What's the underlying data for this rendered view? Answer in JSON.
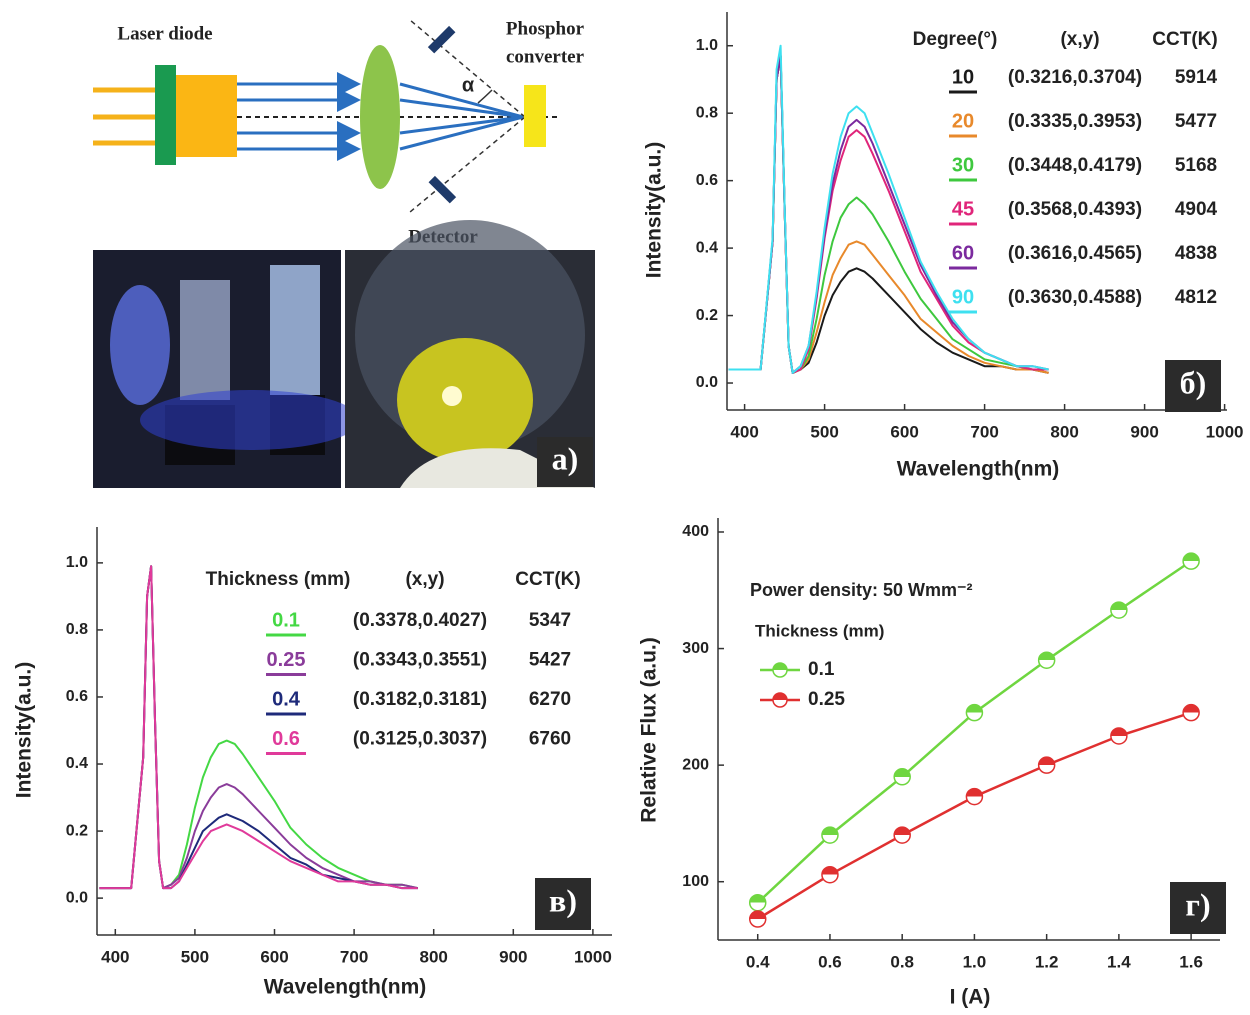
{
  "diagram": {
    "labels": [
      "Laser diode",
      "Phosphor",
      "converter",
      "Detector",
      "α"
    ],
    "panel_label": "а)"
  },
  "chart_data": [
    {
      "type": "line",
      "panel_label": "б)",
      "x_label": "Wavelength(nm)",
      "y_label": "Intensity(a.u.)",
      "legend_header": [
        "Degree(°)",
        "(x,y)",
        "CCT(K)"
      ],
      "x": [
        380,
        400,
        420,
        435,
        440,
        445,
        450,
        455,
        460,
        470,
        480,
        490,
        500,
        510,
        520,
        530,
        540,
        550,
        560,
        580,
        600,
        620,
        640,
        660,
        680,
        700,
        720,
        740,
        760,
        780
      ],
      "series": [
        {
          "name": "10",
          "color": "#1a1a1a",
          "xy": "(0.3216,0.3704)",
          "cct": 5914,
          "values": [
            0.04,
            0.04,
            0.04,
            0.42,
            0.9,
            0.97,
            0.52,
            0.11,
            0.03,
            0.04,
            0.06,
            0.12,
            0.2,
            0.26,
            0.3,
            0.33,
            0.34,
            0.33,
            0.31,
            0.26,
            0.21,
            0.16,
            0.12,
            0.09,
            0.07,
            0.05,
            0.05,
            0.04,
            0.04,
            0.03
          ]
        },
        {
          "name": "20",
          "color": "#e8892b",
          "xy": "(0.3335,0.3953)",
          "cct": 5477,
          "values": [
            0.04,
            0.04,
            0.04,
            0.42,
            0.9,
            0.97,
            0.52,
            0.11,
            0.03,
            0.04,
            0.07,
            0.15,
            0.24,
            0.32,
            0.37,
            0.41,
            0.42,
            0.41,
            0.38,
            0.32,
            0.26,
            0.19,
            0.15,
            0.11,
            0.08,
            0.06,
            0.05,
            0.04,
            0.04,
            0.03
          ]
        },
        {
          "name": "30",
          "color": "#3ec83e",
          "xy": "(0.3448,0.4179)",
          "cct": 5168,
          "values": [
            0.04,
            0.04,
            0.04,
            0.42,
            0.9,
            0.97,
            0.52,
            0.11,
            0.03,
            0.04,
            0.08,
            0.19,
            0.32,
            0.42,
            0.49,
            0.53,
            0.55,
            0.53,
            0.5,
            0.42,
            0.33,
            0.25,
            0.19,
            0.13,
            0.1,
            0.07,
            0.06,
            0.05,
            0.04,
            0.04
          ]
        },
        {
          "name": "45",
          "color": "#e0257a",
          "xy": "(0.3568,0.4393)",
          "cct": 4904,
          "values": [
            0.04,
            0.04,
            0.04,
            0.42,
            0.9,
            0.97,
            0.52,
            0.11,
            0.03,
            0.04,
            0.1,
            0.25,
            0.43,
            0.57,
            0.66,
            0.73,
            0.75,
            0.73,
            0.68,
            0.57,
            0.45,
            0.33,
            0.25,
            0.17,
            0.12,
            0.09,
            0.07,
            0.05,
            0.04,
            0.04
          ]
        },
        {
          "name": "60",
          "color": "#7b2a9e",
          "xy": "(0.3616,0.4565)",
          "cct": 4838,
          "values": [
            0.04,
            0.04,
            0.04,
            0.42,
            0.9,
            0.97,
            0.52,
            0.11,
            0.03,
            0.05,
            0.11,
            0.26,
            0.44,
            0.59,
            0.69,
            0.76,
            0.78,
            0.76,
            0.71,
            0.59,
            0.47,
            0.35,
            0.26,
            0.18,
            0.13,
            0.09,
            0.07,
            0.05,
            0.05,
            0.04
          ]
        },
        {
          "name": "90",
          "color": "#3ee0f0",
          "xy": "(0.3630,0.4588)",
          "cct": 4812,
          "values": [
            0.04,
            0.04,
            0.04,
            0.43,
            0.93,
            1.0,
            0.53,
            0.11,
            0.03,
            0.05,
            0.11,
            0.27,
            0.46,
            0.62,
            0.73,
            0.8,
            0.82,
            0.8,
            0.74,
            0.62,
            0.49,
            0.36,
            0.27,
            0.19,
            0.13,
            0.09,
            0.07,
            0.05,
            0.05,
            0.04
          ]
        }
      ],
      "xlim": [
        378,
        1003
      ],
      "ylim": [
        -0.08,
        1.1
      ],
      "xticks": [
        400,
        500,
        600,
        700,
        800,
        900,
        1000
      ],
      "yticks": [
        {
          "value": 0,
          "label": "0.0"
        },
        0.2,
        0.4,
        0.6,
        0.8,
        {
          "value": 1,
          "label": "1.0"
        }
      ]
    },
    {
      "type": "line",
      "panel_label": "в)",
      "x_label": "Wavelength(nm)",
      "y_label": "Intensity(a.u.)",
      "legend_header": [
        "Thickness (mm)",
        "(x,y)",
        "CCT(K)"
      ],
      "x": [
        380,
        400,
        420,
        435,
        440,
        445,
        450,
        455,
        460,
        470,
        480,
        490,
        500,
        510,
        520,
        530,
        540,
        550,
        560,
        580,
        600,
        620,
        640,
        660,
        680,
        700,
        720,
        740,
        760,
        780
      ],
      "series": [
        {
          "name": "0.1",
          "color": "#44d844",
          "xy": "(0.3378,0.4027)",
          "cct": 5347,
          "values": [
            0.03,
            0.03,
            0.03,
            0.42,
            0.9,
            0.99,
            0.52,
            0.11,
            0.03,
            0.04,
            0.07,
            0.16,
            0.27,
            0.36,
            0.42,
            0.46,
            0.47,
            0.46,
            0.43,
            0.36,
            0.29,
            0.21,
            0.16,
            0.12,
            0.09,
            0.07,
            0.05,
            0.04,
            0.04,
            0.03
          ]
        },
        {
          "name": "0.25",
          "color": "#8a3c9a",
          "xy": "(0.3343,0.3551)",
          "cct": 5427,
          "values": [
            0.03,
            0.03,
            0.03,
            0.42,
            0.9,
            0.99,
            0.52,
            0.11,
            0.03,
            0.04,
            0.06,
            0.12,
            0.2,
            0.26,
            0.3,
            0.33,
            0.34,
            0.33,
            0.31,
            0.26,
            0.21,
            0.16,
            0.12,
            0.09,
            0.07,
            0.05,
            0.05,
            0.04,
            0.04,
            0.03
          ]
        },
        {
          "name": "0.4",
          "color": "#1e2a7a",
          "xy": "(0.3182,0.3181)",
          "cct": 6270,
          "values": [
            0.03,
            0.03,
            0.03,
            0.42,
            0.9,
            0.99,
            0.52,
            0.11,
            0.03,
            0.03,
            0.05,
            0.1,
            0.15,
            0.2,
            0.22,
            0.24,
            0.25,
            0.24,
            0.23,
            0.2,
            0.16,
            0.12,
            0.1,
            0.07,
            0.06,
            0.05,
            0.04,
            0.04,
            0.03,
            0.03
          ]
        },
        {
          "name": "0.6",
          "color": "#e03a9a",
          "xy": "(0.3125,0.3037)",
          "cct": 6760,
          "values": [
            0.03,
            0.03,
            0.03,
            0.42,
            0.9,
            0.99,
            0.52,
            0.11,
            0.03,
            0.03,
            0.05,
            0.09,
            0.13,
            0.17,
            0.2,
            0.21,
            0.22,
            0.21,
            0.2,
            0.17,
            0.14,
            0.11,
            0.09,
            0.07,
            0.05,
            0.05,
            0.04,
            0.04,
            0.03,
            0.03
          ]
        }
      ],
      "xlim": [
        377,
        1024
      ],
      "ylim": [
        -0.11,
        1.107
      ],
      "xticks": [
        400,
        500,
        600,
        700,
        800,
        900,
        1000
      ],
      "yticks": [
        {
          "value": 0,
          "label": "0.0"
        },
        0.2,
        0.4,
        0.6,
        0.8,
        {
          "value": 1,
          "label": "1.0"
        }
      ]
    },
    {
      "type": "line",
      "markers": true,
      "panel_label": "г)",
      "x_label": "I (A)",
      "y_label": "Relative Flux (a.u.)",
      "annotation": "Power density: 50 Wmm⁻²",
      "legend_title": "Thickness (mm)",
      "x": [
        0.4,
        0.6,
        0.8,
        1,
        1.2,
        1.4,
        1.6
      ],
      "series": [
        {
          "name": "0.1",
          "color": "#6fd640",
          "values": [
            82,
            140,
            190,
            245,
            290,
            333,
            375
          ]
        },
        {
          "name": "0.25",
          "color": "#e03030",
          "values": [
            68,
            106,
            140,
            173,
            200,
            225,
            245
          ]
        }
      ],
      "xlim": [
        0.29,
        1.68
      ],
      "ylim": [
        50,
        412
      ],
      "xticks": [
        0.4,
        0.6,
        0.8,
        {
          "value": 1,
          "label": "1.0"
        },
        1.2,
        1.4,
        1.6
      ],
      "yticks": [
        100,
        200,
        300,
        400
      ]
    }
  ]
}
